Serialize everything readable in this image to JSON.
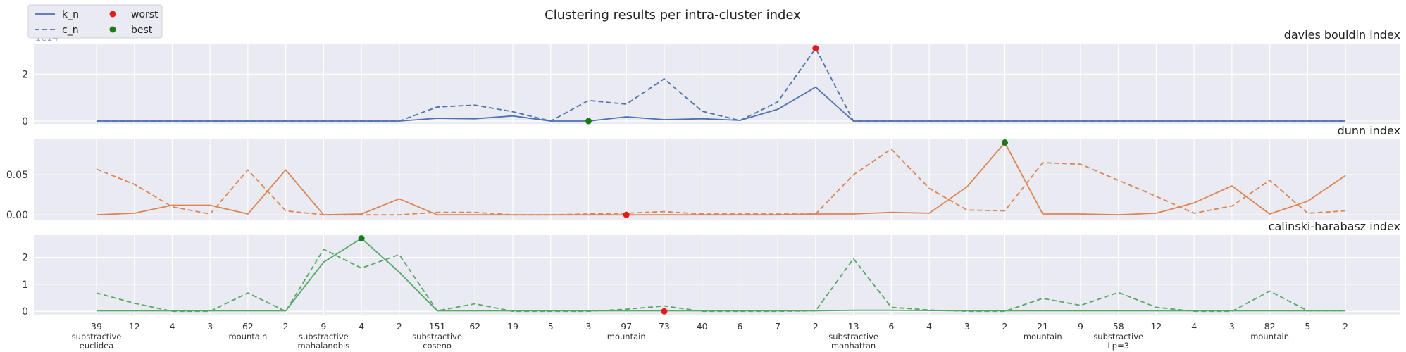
{
  "figure": {
    "title": "Clustering results per intra-cluster index",
    "legend": [
      {
        "label": "k_n",
        "kind": "solid-line"
      },
      {
        "label": "c_n",
        "kind": "dashed-line"
      },
      {
        "label": "worst",
        "kind": "marker",
        "color": "#e41a1c"
      },
      {
        "label": "best",
        "kind": "marker",
        "color": "#1a7a1a"
      }
    ],
    "legend_placement": "top-left",
    "background_color": "#eaeaf2",
    "grid": true
  },
  "chart_data": {
    "type": "line",
    "x_tick_labels": [
      "39",
      "12",
      "4",
      "3",
      "62",
      "2",
      "9",
      "4",
      "2",
      "151",
      "62",
      "19",
      "5",
      "3",
      "97",
      "73",
      "40",
      "6",
      "7",
      "2",
      "13",
      "6",
      "4",
      "3",
      "2",
      "21",
      "9",
      "58",
      "12",
      "4",
      "3",
      "82",
      "5",
      "2"
    ],
    "group_labels": [
      {
        "at": 0,
        "lines": [
          "substractive",
          "euclidea"
        ]
      },
      {
        "at": 4,
        "lines": [
          "mountain"
        ]
      },
      {
        "at": 6,
        "lines": [
          "substractive",
          "mahalanobis"
        ]
      },
      {
        "at": 9,
        "lines": [
          "substractive",
          "coseno"
        ]
      },
      {
        "at": 14,
        "lines": [
          "mountain"
        ]
      },
      {
        "at": 20,
        "lines": [
          "substractive",
          "manhattan"
        ]
      },
      {
        "at": 25,
        "lines": [
          "mountain"
        ]
      },
      {
        "at": 27,
        "lines": [
          "substractive",
          "Lp=3"
        ]
      },
      {
        "at": 31,
        "lines": [
          "mountain"
        ]
      }
    ],
    "panels": [
      {
        "title": "davies bouldin index",
        "color": "#4c72b0",
        "offset_text": "1e14",
        "ylim": [
          -0.12,
          3.3
        ],
        "yticks": [
          0,
          2
        ],
        "ytick_labels": [
          "0",
          "2"
        ],
        "series": [
          {
            "name": "k_n",
            "style": "solid",
            "values": [
              0,
              0,
              0,
              0,
              0,
              0,
              0,
              0,
              0,
              0.12,
              0.1,
              0.22,
              0,
              0,
              0.18,
              0.06,
              0.1,
              0.03,
              0.5,
              1.45,
              0,
              0,
              0,
              0,
              0,
              0,
              0,
              0,
              0,
              0,
              0,
              0,
              0,
              0
            ]
          },
          {
            "name": "c_n",
            "style": "dashed",
            "values": [
              0,
              0,
              0,
              0,
              0,
              0,
              0,
              0,
              0,
              0.6,
              0.68,
              0.4,
              0,
              0.88,
              0.72,
              1.8,
              0.42,
              0.02,
              0.82,
              3.1,
              0,
              0,
              0,
              0,
              0,
              0,
              0,
              0,
              0,
              0,
              0,
              0,
              0,
              0
            ]
          }
        ],
        "worst": {
          "index": 19,
          "value": 3.1
        },
        "best": {
          "index": 13,
          "value": 0.0
        }
      },
      {
        "title": "dunn index",
        "color": "#dd8452",
        "ylim": [
          -0.006,
          0.094
        ],
        "yticks": [
          0,
          0.05
        ],
        "ytick_labels": [
          "0.00",
          "0.05"
        ],
        "series": [
          {
            "name": "k_n",
            "style": "solid",
            "values": [
              0,
              0.002,
              0.012,
              0.012,
              0.001,
              0.056,
              0,
              0.001,
              0.02,
              0,
              0,
              0,
              0,
              0,
              0,
              0,
              0,
              0,
              0,
              0.001,
              0.001,
              0.003,
              0.002,
              0.035,
              0.09,
              0.001,
              0.001,
              0,
              0.002,
              0.015,
              0.036,
              0.001,
              0.017,
              0.049
            ]
          },
          {
            "name": "c_n",
            "style": "dashed",
            "values": [
              0.057,
              0.038,
              0.01,
              0.001,
              0.056,
              0.005,
              0,
              0,
              0,
              0.003,
              0.003,
              0,
              0,
              0.001,
              0.002,
              0.004,
              0.001,
              0.001,
              0.001,
              0.001,
              0.05,
              0.082,
              0.033,
              0.006,
              0.005,
              0.065,
              0.063,
              0.043,
              0.023,
              0.002,
              0.011,
              0.043,
              0.002,
              0.005
            ]
          }
        ],
        "worst": {
          "index": 14,
          "value": 0.0
        },
        "best": {
          "index": 24,
          "value": 0.09
        }
      },
      {
        "title": "calinski-harabasz index",
        "color": "#55a868",
        "ylim": [
          -0.15,
          2.82
        ],
        "yticks": [
          0,
          1,
          2
        ],
        "ytick_labels": [
          "0",
          "1",
          "2"
        ],
        "series": [
          {
            "name": "k_n",
            "style": "solid",
            "values": [
              0.02,
              0.02,
              0.02,
              0.02,
              0.02,
              0.02,
              1.82,
              2.7,
              1.45,
              0.02,
              0.02,
              0.02,
              0.02,
              0.02,
              0.02,
              0.02,
              0.02,
              0.02,
              0.02,
              0.02,
              0.04,
              0.04,
              0.03,
              0.02,
              0.02,
              0.02,
              0.02,
              0.02,
              0.02,
              0.02,
              0.02,
              0.02,
              0.02,
              0.02
            ]
          },
          {
            "name": "c_n",
            "style": "dashed",
            "values": [
              0.68,
              0.3,
              0,
              0,
              0.68,
              0,
              2.3,
              1.6,
              2.1,
              0.02,
              0.28,
              0,
              0,
              0,
              0.08,
              0.2,
              0,
              0,
              0,
              0.02,
              1.95,
              0.15,
              0.05,
              0,
              0,
              0.48,
              0.22,
              0.7,
              0.15,
              0,
              0,
              0.75,
              0.02,
              0.02
            ]
          }
        ],
        "worst": {
          "index": 15,
          "value": 0.0
        },
        "best": {
          "index": 7,
          "value": 2.7
        }
      }
    ]
  }
}
